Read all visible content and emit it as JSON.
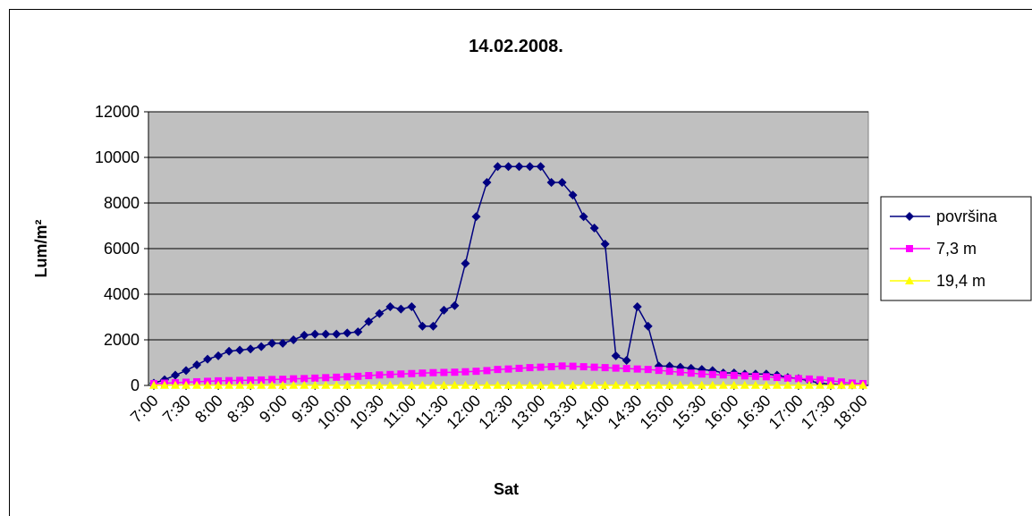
{
  "chart_data": {
    "type": "line",
    "title": "14.02.2008.",
    "x_label": "Sat",
    "y_label": "Lum/m²",
    "categories": [
      "7:00",
      null,
      null,
      "7:30",
      null,
      null,
      "8:00",
      null,
      null,
      "8:30",
      null,
      null,
      "9:00",
      null,
      null,
      "9:30",
      null,
      null,
      "10:00",
      null,
      null,
      "10:30",
      null,
      null,
      "11:00",
      null,
      null,
      "11:30",
      null,
      null,
      "12:00",
      null,
      null,
      "12:30",
      null,
      null,
      "13:00",
      null,
      null,
      "13:30",
      null,
      null,
      "14:00",
      null,
      null,
      "14:30",
      null,
      null,
      "15:00",
      null,
      null,
      "15:30",
      null,
      null,
      "16:00",
      null,
      null,
      "16:30",
      null,
      null,
      "17:00",
      null,
      null,
      "17:30",
      null,
      null,
      "18:00"
    ],
    "series": [
      {
        "name": "površina",
        "color": "#000080",
        "marker": "diamond",
        "values": [
          100,
          250,
          450,
          650,
          900,
          1150,
          1300,
          1500,
          1550,
          1600,
          1700,
          1850,
          1850,
          2000,
          2200,
          2250,
          2250,
          2250,
          2300,
          2350,
          2800,
          3150,
          3450,
          3350,
          3450,
          2600,
          2600,
          3300,
          3500,
          5350,
          7400,
          8900,
          9600,
          9600,
          9600,
          9600,
          9600,
          8900,
          8900,
          8350,
          7400,
          6900,
          6200,
          1300,
          1100,
          3450,
          2600,
          850,
          850,
          800,
          750,
          700,
          650,
          550,
          550,
          500,
          500,
          500,
          450,
          350,
          300,
          200,
          100,
          50,
          30,
          20,
          10
        ]
      },
      {
        "name": "7,3 m",
        "color": "#FF00FF",
        "marker": "square",
        "values": [
          80,
          100,
          120,
          140,
          160,
          180,
          200,
          210,
          220,
          230,
          240,
          260,
          270,
          290,
          300,
          320,
          340,
          360,
          380,
          400,
          430,
          460,
          480,
          500,
          520,
          540,
          560,
          570,
          580,
          600,
          620,
          650,
          700,
          720,
          750,
          780,
          800,
          820,
          850,
          840,
          820,
          800,
          780,
          760,
          740,
          720,
          700,
          660,
          620,
          580,
          540,
          500,
          480,
          460,
          440,
          420,
          400,
          380,
          350,
          320,
          300,
          280,
          250,
          200,
          150,
          100,
          80
        ]
      },
      {
        "name": "19,4 m",
        "color": "#FFFF00",
        "marker": "triangle",
        "values": [
          10,
          10,
          10,
          10,
          10,
          10,
          10,
          10,
          10,
          10,
          10,
          10,
          10,
          10,
          10,
          10,
          10,
          10,
          10,
          10,
          10,
          10,
          10,
          10,
          10,
          10,
          10,
          10,
          10,
          10,
          10,
          10,
          10,
          10,
          10,
          10,
          10,
          10,
          10,
          10,
          10,
          10,
          10,
          10,
          10,
          10,
          10,
          10,
          10,
          10,
          10,
          10,
          10,
          10,
          10,
          10,
          10,
          10,
          10,
          10,
          10,
          10,
          10,
          10,
          10,
          10,
          10
        ]
      }
    ],
    "ylim": [
      0,
      12000
    ],
    "yticks": [
      0,
      2000,
      4000,
      6000,
      8000,
      10000,
      12000
    ],
    "grid": true,
    "legend": "right"
  }
}
